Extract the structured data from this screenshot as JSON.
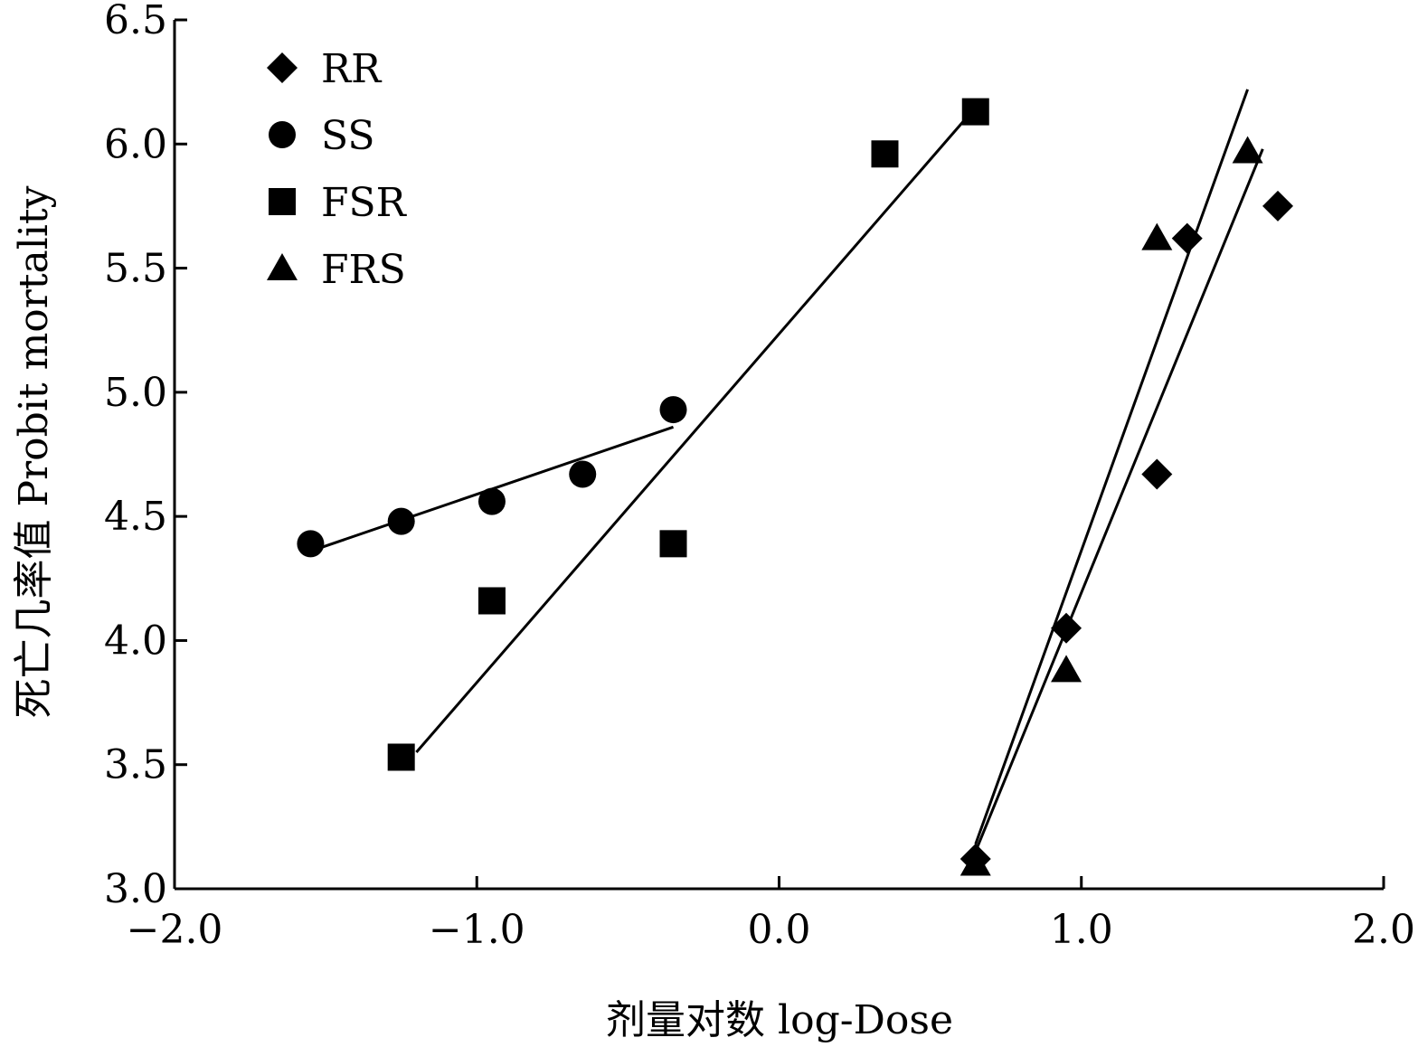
{
  "chart_data": {
    "type": "scatter",
    "xlabel": "剂量对数 log-Dose",
    "ylabel": "死亡几率值 Probit mortality",
    "xlim": [
      -2.0,
      2.0
    ],
    "ylim": [
      3.0,
      6.5
    ],
    "x_ticks": [
      "−2.0",
      "−1.0",
      "0.0",
      "1.0",
      "2.0"
    ],
    "y_ticks": [
      "3.0",
      "3.5",
      "4.0",
      "4.5",
      "5.0",
      "5.5",
      "6.0",
      "6.5"
    ],
    "legend_position": "top-left",
    "grid": false,
    "series": [
      {
        "name": "RR",
        "marker": "diamond",
        "points": [
          [
            0.65,
            3.12
          ],
          [
            0.95,
            4.05
          ],
          [
            1.25,
            4.67
          ],
          [
            1.35,
            5.62
          ],
          [
            1.65,
            5.75
          ]
        ],
        "fit_line": [
          [
            0.65,
            3.15
          ],
          [
            1.6,
            5.98
          ]
        ]
      },
      {
        "name": "SS",
        "marker": "circle",
        "points": [
          [
            -1.55,
            4.39
          ],
          [
            -1.25,
            4.48
          ],
          [
            -0.95,
            4.56
          ],
          [
            -0.65,
            4.67
          ],
          [
            -0.35,
            4.93
          ]
        ],
        "fit_line": [
          [
            -1.55,
            4.36
          ],
          [
            -0.35,
            4.86
          ]
        ]
      },
      {
        "name": "FSR",
        "marker": "square",
        "points": [
          [
            -1.25,
            3.53
          ],
          [
            -0.95,
            4.16
          ],
          [
            -0.35,
            4.39
          ],
          [
            0.35,
            5.96
          ],
          [
            0.65,
            6.13
          ]
        ],
        "fit_line": [
          [
            -1.2,
            3.55
          ],
          [
            0.63,
            6.12
          ]
        ]
      },
      {
        "name": "FRS",
        "marker": "triangle",
        "points": [
          [
            0.65,
            3.1
          ],
          [
            0.95,
            3.88
          ],
          [
            1.25,
            5.62
          ],
          [
            1.55,
            5.97
          ]
        ],
        "fit_line": [
          [
            0.65,
            3.18
          ],
          [
            1.55,
            6.22
          ]
        ]
      }
    ]
  }
}
